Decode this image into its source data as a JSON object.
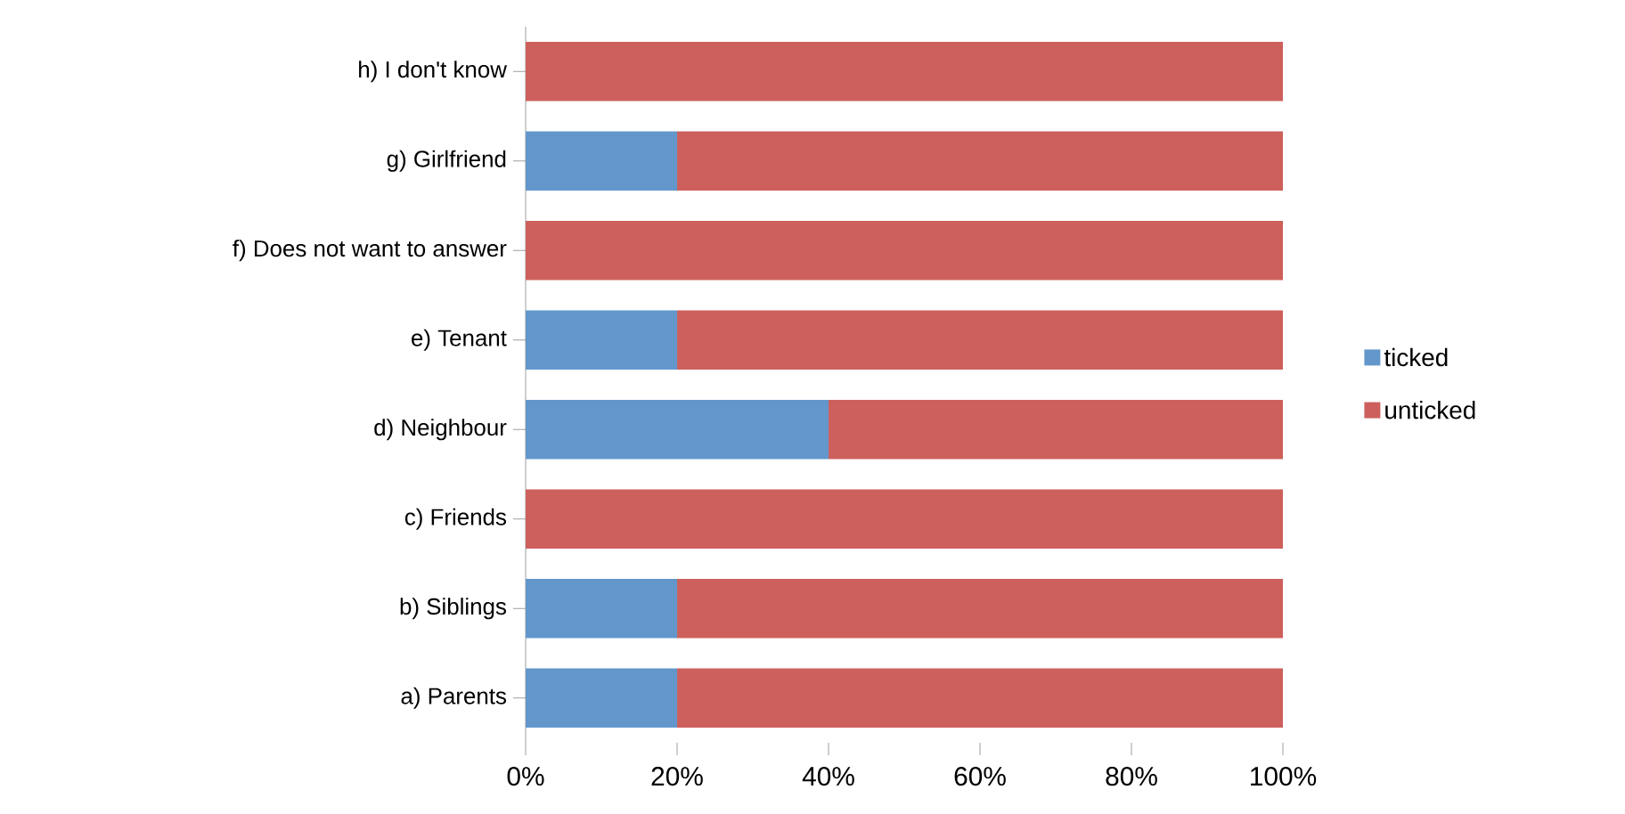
{
  "chart_data": {
    "type": "bar",
    "orientation": "horizontal",
    "stacked": true,
    "categories": [
      "h) I don't know",
      "g) Girlfriend",
      "f) Does not want to answer",
      "e) Tenant",
      "d) Neighbour",
      "c) Friends",
      "b) Siblings",
      "a) Parents"
    ],
    "series": [
      {
        "name": "ticked",
        "color": "#6397cc",
        "values": [
          0,
          20,
          0,
          20,
          40,
          0,
          20,
          20
        ]
      },
      {
        "name": "unticked",
        "color": "#cd605c",
        "values": [
          100,
          80,
          100,
          80,
          60,
          100,
          80,
          80
        ]
      }
    ],
    "xlim": [
      0,
      100
    ],
    "xticks": [
      {
        "value": 0,
        "label": "0%"
      },
      {
        "value": 20,
        "label": "20%"
      },
      {
        "value": 40,
        "label": "40%"
      },
      {
        "value": 60,
        "label": "60%"
      },
      {
        "value": 80,
        "label": "80%"
      },
      {
        "value": 100,
        "label": "100%"
      }
    ],
    "legend": "right"
  }
}
